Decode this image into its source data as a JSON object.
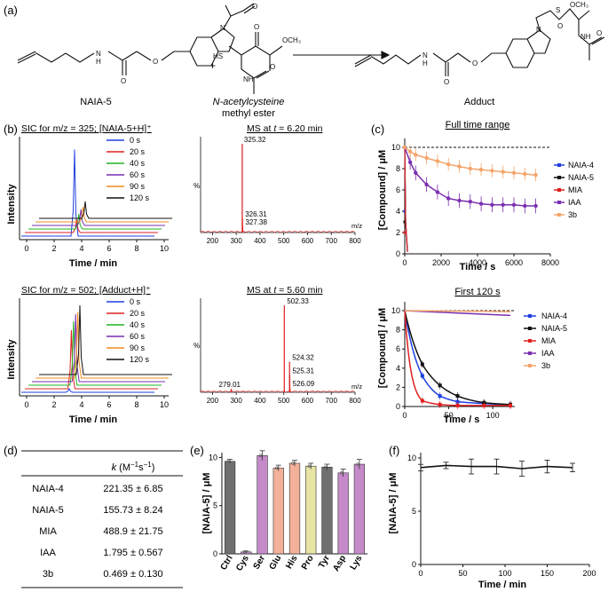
{
  "panel_labels": {
    "a": "(a)",
    "b": "(b)",
    "c": "(c)",
    "d": "(d)",
    "e": "(e)",
    "f": "(f)"
  },
  "scheme": {
    "reactant1": "NAIA-5",
    "reactant2_line1": "N-acetylcysteine",
    "reactant2_line2": "methyl ester",
    "product": "Adduct",
    "plus": "+",
    "atom_O": "O",
    "atom_N": "N",
    "atom_H": "H",
    "atom_HS": "HS",
    "atom_S": "S",
    "atom_NH": "NH",
    "atom_OCH3": "OCH₃"
  },
  "colors": {
    "blue": "#1f3fe0",
    "black": "#111111",
    "green": "#22b422",
    "purple": "#7a2fb0",
    "orange": "#f08c1e",
    "red": "#e02020",
    "salmon": "#f4a46a",
    "gray": "#6f6f6f",
    "violet": "#c58ac9",
    "peach": "#f4b19a",
    "olive": "#e8e4a4"
  },
  "sic1": {
    "title": "SIC for m/z = 325; [NAIA-5+H]⁺",
    "ylabel": "Intensity",
    "xlabel": "Time / min",
    "legend": [
      "0 s",
      "20 s",
      "40 s",
      "60 s",
      "90 s",
      "120 s"
    ],
    "peak_heights": [
      0.92,
      0.14,
      0.16,
      0.17,
      0.16,
      0.18
    ],
    "x_ticks": [
      "0",
      "2",
      "4",
      "6",
      "8",
      "10"
    ]
  },
  "ms1": {
    "title": "MS at t = 6.20 min",
    "title_prefix": "MS at ",
    "title_t": "t",
    "title_suffix": " = 6.20 min",
    "ylabel": "%",
    "xunit": "m/z",
    "peaks": [
      {
        "mz": 325.32,
        "rel": 100
      },
      {
        "mz": 326.31,
        "rel": 16
      },
      {
        "mz": 327.38,
        "rel": 7
      }
    ],
    "labels": [
      "325.32",
      "326.31",
      "327.38"
    ],
    "x_ticks": [
      "200",
      "300",
      "400",
      "500",
      "600",
      "700",
      "800"
    ]
  },
  "sic2": {
    "title": "SIC for m/z = 502; [Adduct+H]⁺",
    "ylabel": "Intensity",
    "xlabel": "Time / min",
    "legend": [
      "0 s",
      "20 s",
      "40 s",
      "60 s",
      "90 s",
      "120 s"
    ],
    "peak_heights": [
      0.04,
      0.66,
      0.72,
      0.76,
      0.74,
      0.78
    ],
    "x_ticks": [
      "0",
      "2",
      "4",
      "6",
      "8",
      "10"
    ]
  },
  "ms2": {
    "title": "MS at t = 5.60 min",
    "title_prefix": "MS at ",
    "title_t": "t",
    "title_suffix": " = 5.60 min",
    "ylabel": "%",
    "xunit": "m/z",
    "peaks": [
      {
        "mz": 279.01,
        "rel": 4
      },
      {
        "mz": 502.33,
        "rel": 100
      },
      {
        "mz": 524.32,
        "rel": 35
      },
      {
        "mz": 525.31,
        "rel": 20
      },
      {
        "mz": 526.09,
        "rel": 5
      }
    ],
    "labels": [
      "279.01",
      "502.33",
      "524.32",
      "525.31",
      "526.09"
    ],
    "x_ticks": [
      "200",
      "300",
      "400",
      "500",
      "600",
      "700",
      "800"
    ]
  },
  "chart_data": [
    {
      "type": "line",
      "title": "Full time range",
      "xlabel": "Time / s",
      "ylabel": "[Compound] / μM",
      "xlim": [
        0,
        8000
      ],
      "ylim": [
        0,
        10
      ],
      "x_ticks": [
        "0",
        "2000",
        "4000",
        "6000",
        "8000"
      ],
      "y_ticks": [
        "0",
        "2",
        "4",
        "6",
        "8",
        "10"
      ],
      "reference_line": 10,
      "series": [
        {
          "name": "NAIA-4",
          "color": "#1f3fe0",
          "k": 221.35
        },
        {
          "name": "NAIA-5",
          "color": "#111111",
          "k": 155.73
        },
        {
          "name": "MIA",
          "color": "#e02020",
          "k": 488.9
        },
        {
          "name": "IAA",
          "color": "#7a2fb0",
          "x": [
            0,
            300,
            600,
            1200,
            1800,
            2400,
            3000,
            3600,
            4200,
            4800,
            5400,
            6000,
            6600,
            7200
          ],
          "y": [
            10,
            8.6,
            7.6,
            6.5,
            5.8,
            5.2,
            5.0,
            4.9,
            4.7,
            4.6,
            4.6,
            4.6,
            4.5,
            4.5
          ],
          "err": 0.7
        },
        {
          "name": "3b",
          "color": "#f4a46a",
          "x": [
            0,
            300,
            600,
            1200,
            1800,
            2400,
            3000,
            3600,
            4200,
            4800,
            5400,
            6000,
            6600,
            7200
          ],
          "y": [
            10,
            9.6,
            9.3,
            9.0,
            8.7,
            8.4,
            8.2,
            8.0,
            7.9,
            7.8,
            7.7,
            7.6,
            7.5,
            7.4
          ],
          "err": 0.6
        }
      ]
    },
    {
      "type": "line",
      "title": "First 120 s",
      "xlabel": "Time / s",
      "ylabel": "[Compound] / μM",
      "xlim": [
        0,
        125
      ],
      "ylim": [
        0,
        10
      ],
      "x_ticks": [
        "0",
        "50",
        "100"
      ],
      "y_ticks": [
        "0",
        "2",
        "4",
        "6",
        "8",
        "10"
      ],
      "reference_line": 10,
      "series": [
        {
          "name": "NAIA-4",
          "color": "#1f3fe0",
          "x": [
            0,
            20,
            40,
            60,
            90,
            120
          ],
          "y": [
            10,
            3.2,
            1.1,
            0.5,
            0.3,
            0.2
          ]
        },
        {
          "name": "NAIA-5",
          "color": "#111111",
          "x": [
            0,
            20,
            40,
            60,
            90,
            120
          ],
          "y": [
            10,
            4.4,
            2.2,
            1.1,
            0.4,
            0.2
          ]
        },
        {
          "name": "MIA",
          "color": "#e02020",
          "x": [
            0,
            20,
            40,
            60,
            90,
            120
          ],
          "y": [
            10,
            0.6,
            0.2,
            0.1,
            0.1,
            0.1
          ]
        },
        {
          "name": "IAA",
          "color": "#7a2fb0",
          "x": [
            0,
            120
          ],
          "y": [
            10,
            9.5
          ]
        },
        {
          "name": "3b",
          "color": "#f4a46a",
          "x": [
            0,
            120
          ],
          "y": [
            10,
            9.9
          ]
        }
      ]
    },
    {
      "type": "table",
      "header": "k (M⁻¹s⁻¹)",
      "rows": [
        {
          "name": "NAIA-4",
          "value": "221.35 ± 6.85"
        },
        {
          "name": "NAIA-5",
          "value": "155.73 ± 8.24"
        },
        {
          "name": "MIA",
          "value": "488.9 ± 21.75"
        },
        {
          "name": "IAA",
          "value": "1.795 ± 0.567"
        },
        {
          "name": "3b",
          "value": "0.469 ± 0.130"
        }
      ]
    },
    {
      "type": "bar",
      "ylabel": "[NAIA-5] / μM",
      "ylim": [
        0,
        10.5
      ],
      "y_ticks": [
        "0",
        "5",
        "10"
      ],
      "categories": [
        "Ctrl",
        "Cys",
        "Ser",
        "Glu",
        "His",
        "Pro",
        "Tyr",
        "Asp",
        "Lys"
      ],
      "values": [
        9.6,
        0.2,
        10.2,
        8.9,
        9.4,
        9.1,
        9.0,
        8.4,
        9.3
      ],
      "errors": [
        0.2,
        0.1,
        0.5,
        0.3,
        0.3,
        0.3,
        0.3,
        0.4,
        0.5
      ],
      "colors": [
        "#6f6f6f",
        "#c58ac9",
        "#c58ac9",
        "#f4b19a",
        "#f4b19a",
        "#e8e4a4",
        "#6f6f6f",
        "#c58ac9",
        "#c58ac9"
      ]
    },
    {
      "type": "line",
      "ylabel": "[NAIA-5] / μM",
      "xlabel": "Time / min",
      "xlim": [
        0,
        200
      ],
      "ylim": [
        0,
        10.5
      ],
      "x_ticks": [
        "0",
        "50",
        "100",
        "150",
        "200"
      ],
      "y_ticks": [
        "0",
        "5",
        "10"
      ],
      "x": [
        0,
        30,
        60,
        90,
        120,
        150,
        180
      ],
      "y": [
        9.1,
        9.3,
        9.2,
        9.2,
        9.0,
        9.2,
        9.1
      ],
      "err": [
        0.3,
        0.3,
        0.7,
        0.7,
        0.7,
        0.6,
        0.4
      ]
    }
  ]
}
